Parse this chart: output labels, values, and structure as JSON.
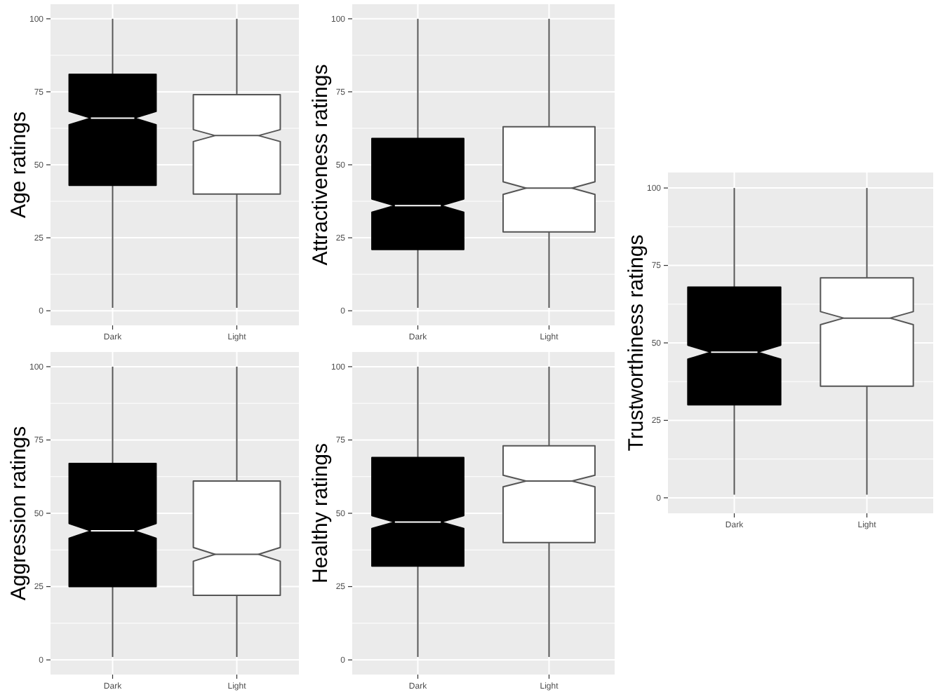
{
  "chart_data": [
    {
      "type": "box",
      "ylabel": "Age ratings",
      "categories": [
        "Dark",
        "Light"
      ],
      "colors": [
        "#000000",
        "#ffffff"
      ],
      "boxes": [
        {
          "low": 1,
          "q1": 43,
          "median": 66,
          "q3": 81,
          "high": 100
        },
        {
          "low": 1,
          "q1": 40,
          "median": 60,
          "q3": 74,
          "high": 100
        }
      ],
      "ylim": [
        -5,
        105
      ],
      "yticks": [
        0,
        25,
        50,
        75,
        100
      ],
      "grid": true
    },
    {
      "type": "box",
      "ylabel": "Attractiveness ratings",
      "categories": [
        "Dark",
        "Light"
      ],
      "colors": [
        "#000000",
        "#ffffff"
      ],
      "boxes": [
        {
          "low": 1,
          "q1": 21,
          "median": 36,
          "q3": 59,
          "high": 100
        },
        {
          "low": 1,
          "q1": 27,
          "median": 42,
          "q3": 63,
          "high": 100
        }
      ],
      "ylim": [
        -5,
        105
      ],
      "yticks": [
        0,
        25,
        50,
        75,
        100
      ],
      "grid": true
    },
    {
      "type": "box",
      "ylabel": "Trustworthiness ratings",
      "categories": [
        "Dark",
        "Light"
      ],
      "colors": [
        "#000000",
        "#ffffff"
      ],
      "boxes": [
        {
          "low": 1,
          "q1": 30,
          "median": 47,
          "q3": 68,
          "high": 100
        },
        {
          "low": 1,
          "q1": 36,
          "median": 58,
          "q3": 71,
          "high": 100
        }
      ],
      "ylim": [
        -5,
        105
      ],
      "yticks": [
        0,
        25,
        50,
        75,
        100
      ],
      "grid": true
    },
    {
      "type": "box",
      "ylabel": "Aggression ratings",
      "categories": [
        "Dark",
        "Light"
      ],
      "colors": [
        "#000000",
        "#ffffff"
      ],
      "boxes": [
        {
          "low": 1,
          "q1": 25,
          "median": 44,
          "q3": 67,
          "high": 100
        },
        {
          "low": 1,
          "q1": 22,
          "median": 36,
          "q3": 61,
          "high": 100
        }
      ],
      "ylim": [
        -5,
        105
      ],
      "yticks": [
        0,
        25,
        50,
        75,
        100
      ],
      "grid": true
    },
    {
      "type": "box",
      "ylabel": "Healthy ratings",
      "categories": [
        "Dark",
        "Light"
      ],
      "colors": [
        "#000000",
        "#ffffff"
      ],
      "boxes": [
        {
          "low": 1,
          "q1": 32,
          "median": 47,
          "q3": 69,
          "high": 100
        },
        {
          "low": 1,
          "q1": 40,
          "median": 61,
          "q3": 73,
          "high": 100
        }
      ],
      "ylim": [
        -5,
        105
      ],
      "yticks": [
        0,
        25,
        50,
        75,
        100
      ],
      "grid": true
    }
  ]
}
